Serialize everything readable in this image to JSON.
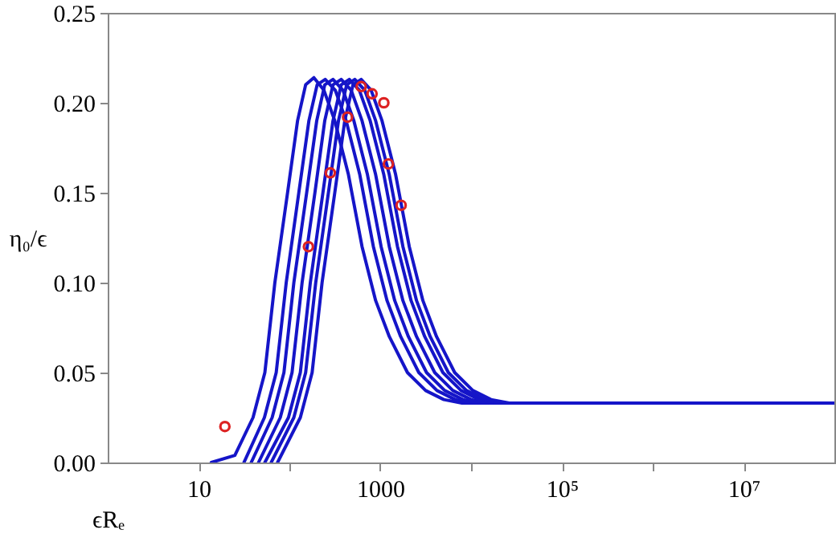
{
  "chart_data": {
    "type": "line",
    "xlabel": "ϵRₑ",
    "ylabel": "η₀/ϵ",
    "log": "x",
    "grid": false,
    "line_style": "solid",
    "xlim": [
      1,
      100000000
    ],
    "xticks": [
      10,
      {
        "value": 100,
        "label": null
      },
      {
        "value": 1000,
        "label": "1000"
      },
      {
        "value": 10000,
        "label": null
      },
      {
        "value": 100000,
        "label": "10⁵"
      },
      {
        "value": 1000000,
        "label": null
      },
      {
        "value": 10000000,
        "label": "10⁷"
      }
    ],
    "ylim": [
      0,
      0.25
    ],
    "yticks": [
      {
        "value": 0,
        "label": "0.00"
      },
      {
        "value": 0.05,
        "label": "0.05"
      },
      {
        "value": 0.1,
        "label": "0.10"
      },
      {
        "value": 0.15,
        "label": "0.15"
      },
      {
        "value": 0.2,
        "label": "0.20"
      },
      {
        "value": 0.25,
        "label": "0.25"
      }
    ],
    "series": [
      {
        "color": "#1515c8",
        "x": [
          13.8,
          25.1,
          39.8,
          53.7,
          69.2,
          95.5,
          123,
          151,
          186,
          240,
          316,
          447,
          631,
          891,
          1259,
          1995,
          3162,
          5012,
          7943,
          100000000
        ],
        "values": [
          0,
          0.004,
          0.025,
          0.05,
          0.1,
          0.15,
          0.19,
          0.21,
          0.214,
          0.207,
          0.19,
          0.16,
          0.12,
          0.09,
          0.07,
          0.05,
          0.04,
          0.035,
          0.033,
          0.033
        ]
      },
      {
        "color": "#1515c8",
        "x": [
          31.6,
          53.1,
          71.6,
          92.3,
          127,
          164,
          202,
          248,
          320,
          422,
          596,
          841,
          1189,
          1679,
          2661,
          4217,
          6683,
          10593,
          30000
        ],
        "values": [
          0,
          0.025,
          0.05,
          0.1,
          0.15,
          0.19,
          0.21,
          0.213,
          0.207,
          0.19,
          0.16,
          0.12,
          0.09,
          0.07,
          0.05,
          0.04,
          0.035,
          0.033,
          0.033
        ]
      },
      {
        "color": "#1515c8",
        "x": [
          38,
          64.6,
          87.1,
          112,
          155,
          200,
          245,
          302,
          389,
          513,
          724,
          1023,
          1445,
          2042,
          3236,
          5129,
          8128,
          12882,
          50000
        ],
        "values": [
          0,
          0.025,
          0.05,
          0.1,
          0.15,
          0.19,
          0.21,
          0.213,
          0.207,
          0.19,
          0.16,
          0.12,
          0.09,
          0.07,
          0.05,
          0.04,
          0.035,
          0.033,
          0.033
        ]
      },
      {
        "color": "#1515c8",
        "x": [
          45.7,
          79.4,
          107,
          138,
          191,
          245,
          302,
          372,
          479,
          631,
          891,
          1259,
          1778,
          2512,
          3981,
          6310,
          10000,
          15849,
          100000
        ],
        "values": [
          0,
          0.025,
          0.05,
          0.1,
          0.15,
          0.19,
          0.21,
          0.213,
          0.207,
          0.19,
          0.16,
          0.12,
          0.09,
          0.07,
          0.05,
          0.04,
          0.035,
          0.033,
          0.033
        ]
      },
      {
        "color": "#1515c8",
        "x": [
          53.7,
          97.7,
          132,
          170,
          234,
          302,
          372,
          457,
          589,
          776,
          1096,
          1549,
          2188,
          3090,
          4898,
          7762,
          12303,
          19498,
          300000
        ],
        "values": [
          0,
          0.025,
          0.05,
          0.1,
          0.15,
          0.19,
          0.21,
          0.213,
          0.207,
          0.19,
          0.16,
          0.12,
          0.09,
          0.07,
          0.05,
          0.04,
          0.035,
          0.033,
          0.033
        ]
      },
      {
        "color": "#1515c8",
        "x": [
          63.1,
          112,
          151,
          195,
          269,
          347,
          427,
          525,
          676,
          891,
          1259,
          1778,
          2512,
          3548,
          5623,
          8913,
          14125,
          22387,
          1000000
        ],
        "values": [
          0,
          0.025,
          0.05,
          0.1,
          0.15,
          0.19,
          0.21,
          0.213,
          0.207,
          0.19,
          0.16,
          0.12,
          0.09,
          0.07,
          0.05,
          0.04,
          0.035,
          0.033,
          0.033
        ]
      },
      {
        "color": "#1515c8",
        "x": [
          74.1,
          132,
          178,
          229,
          316,
          407,
          501,
          617,
          794,
          1047,
          1479,
          2089,
          2951,
          4169,
          6607,
          10471,
          16596,
          26303,
          2000000
        ],
        "values": [
          0,
          0.025,
          0.05,
          0.1,
          0.15,
          0.19,
          0.21,
          0.213,
          0.207,
          0.19,
          0.16,
          0.12,
          0.09,
          0.07,
          0.05,
          0.04,
          0.035,
          0.033,
          0.033
        ]
      },
      {
        "type": "scatter",
        "marker": "circle",
        "color": "#dd2222",
        "x": [
          19.5,
          162,
          282,
          437,
          617,
          813,
          1096,
          1230,
          1698
        ],
        "values": [
          0.02,
          0.12,
          0.161,
          0.192,
          0.209,
          0.205,
          0.2,
          0.166,
          0.143
        ]
      }
    ]
  }
}
